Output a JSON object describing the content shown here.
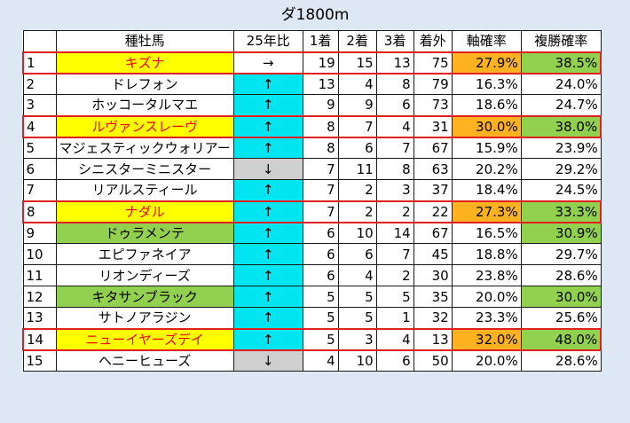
{
  "title": "ダ1800m",
  "headers": [
    "",
    "種牡馬",
    "25年比",
    "1着",
    "2着",
    "3着",
    "着外",
    "軸確率",
    "複勝確率"
  ],
  "rows": [
    {
      "no": "1",
      "name": "キズナ",
      "trend": "→",
      "first": "19",
      "second": "15",
      "third": "13",
      "out": "75",
      "axis": "27.9%",
      "place": "38.5%",
      "highlight": true,
      "name_style": "yellow-red",
      "axis_color": "orange",
      "place_color": "green",
      "trend_style": "none"
    },
    {
      "no": "2",
      "name": "ドレフォン",
      "trend": "↑",
      "first": "13",
      "second": "4",
      "third": "8",
      "out": "79",
      "axis": "16.3%",
      "place": "24.0%",
      "highlight": false,
      "name_style": "plain",
      "axis_color": "none",
      "place_color": "none",
      "trend_style": "up"
    },
    {
      "no": "3",
      "name": "ホッコータルマエ",
      "trend": "↑",
      "first": "9",
      "second": "9",
      "third": "6",
      "out": "73",
      "axis": "18.6%",
      "place": "24.7%",
      "highlight": false,
      "name_style": "plain",
      "axis_color": "none",
      "place_color": "none",
      "trend_style": "up"
    },
    {
      "no": "4",
      "name": "ルヴァンスレーヴ",
      "trend": "↑",
      "first": "8",
      "second": "7",
      "third": "4",
      "out": "31",
      "axis": "30.0%",
      "place": "38.0%",
      "highlight": true,
      "name_style": "yellow-red",
      "axis_color": "orange",
      "place_color": "green",
      "trend_style": "up"
    },
    {
      "no": "5",
      "name": "マジェスティックウォリアー",
      "trend": "↑",
      "first": "8",
      "second": "6",
      "third": "7",
      "out": "67",
      "axis": "15.9%",
      "place": "23.9%",
      "highlight": false,
      "name_style": "plain",
      "axis_color": "none",
      "place_color": "none",
      "trend_style": "up"
    },
    {
      "no": "6",
      "name": "シニスターミニスター",
      "trend": "↓",
      "first": "7",
      "second": "11",
      "third": "8",
      "out": "63",
      "axis": "20.2%",
      "place": "29.2%",
      "highlight": false,
      "name_style": "plain",
      "axis_color": "none",
      "place_color": "none",
      "trend_style": "down"
    },
    {
      "no": "7",
      "name": "リアルスティール",
      "trend": "↑",
      "first": "7",
      "second": "2",
      "third": "3",
      "out": "37",
      "axis": "18.4%",
      "place": "24.5%",
      "highlight": false,
      "name_style": "plain",
      "axis_color": "none",
      "place_color": "none",
      "trend_style": "up"
    },
    {
      "no": "8",
      "name": "ナダル",
      "trend": "↑",
      "first": "7",
      "second": "2",
      "third": "2",
      "out": "22",
      "axis": "27.3%",
      "place": "33.3%",
      "highlight": true,
      "name_style": "yellow-red",
      "axis_color": "orange",
      "place_color": "green",
      "trend_style": "up"
    },
    {
      "no": "9",
      "name": "ドゥラメンテ",
      "trend": "↑",
      "first": "6",
      "second": "10",
      "third": "14",
      "out": "67",
      "axis": "16.5%",
      "place": "30.9%",
      "highlight": false,
      "name_style": "green-bold",
      "axis_color": "none",
      "place_color": "green",
      "trend_style": "up"
    },
    {
      "no": "10",
      "name": "エピファネイア",
      "trend": "↑",
      "first": "6",
      "second": "6",
      "third": "7",
      "out": "45",
      "axis": "18.8%",
      "place": "29.7%",
      "highlight": false,
      "name_style": "plain",
      "axis_color": "none",
      "place_color": "none",
      "trend_style": "up"
    },
    {
      "no": "11",
      "name": "リオンディーズ",
      "trend": "↑",
      "first": "6",
      "second": "4",
      "third": "2",
      "out": "30",
      "axis": "23.8%",
      "place": "28.6%",
      "highlight": false,
      "name_style": "plain",
      "axis_color": "none",
      "place_color": "none",
      "trend_style": "up"
    },
    {
      "no": "12",
      "name": "キタサンブラック",
      "trend": "↑",
      "first": "5",
      "second": "5",
      "third": "5",
      "out": "35",
      "axis": "20.0%",
      "place": "30.0%",
      "highlight": false,
      "name_style": "green-bold",
      "axis_color": "none",
      "place_color": "green",
      "trend_style": "up"
    },
    {
      "no": "13",
      "name": "サトノアラジン",
      "trend": "↑",
      "first": "5",
      "second": "5",
      "third": "1",
      "out": "32",
      "axis": "23.3%",
      "place": "25.6%",
      "highlight": false,
      "name_style": "plain",
      "axis_color": "none",
      "place_color": "none",
      "trend_style": "up"
    },
    {
      "no": "14",
      "name": "ニューイヤーズデイ",
      "trend": "↑",
      "first": "5",
      "second": "3",
      "third": "4",
      "out": "13",
      "axis": "32.0%",
      "place": "48.0%",
      "highlight": true,
      "name_style": "yellow-red",
      "axis_color": "orange",
      "place_color": "green",
      "trend_style": "up"
    },
    {
      "no": "15",
      "name": "ヘニーヒューズ",
      "trend": "↓",
      "first": "4",
      "second": "10",
      "third": "6",
      "out": "50",
      "axis": "20.0%",
      "place": "28.6%",
      "highlight": false,
      "name_style": "plain",
      "axis_color": "none",
      "place_color": "none",
      "trend_style": "down"
    }
  ]
}
